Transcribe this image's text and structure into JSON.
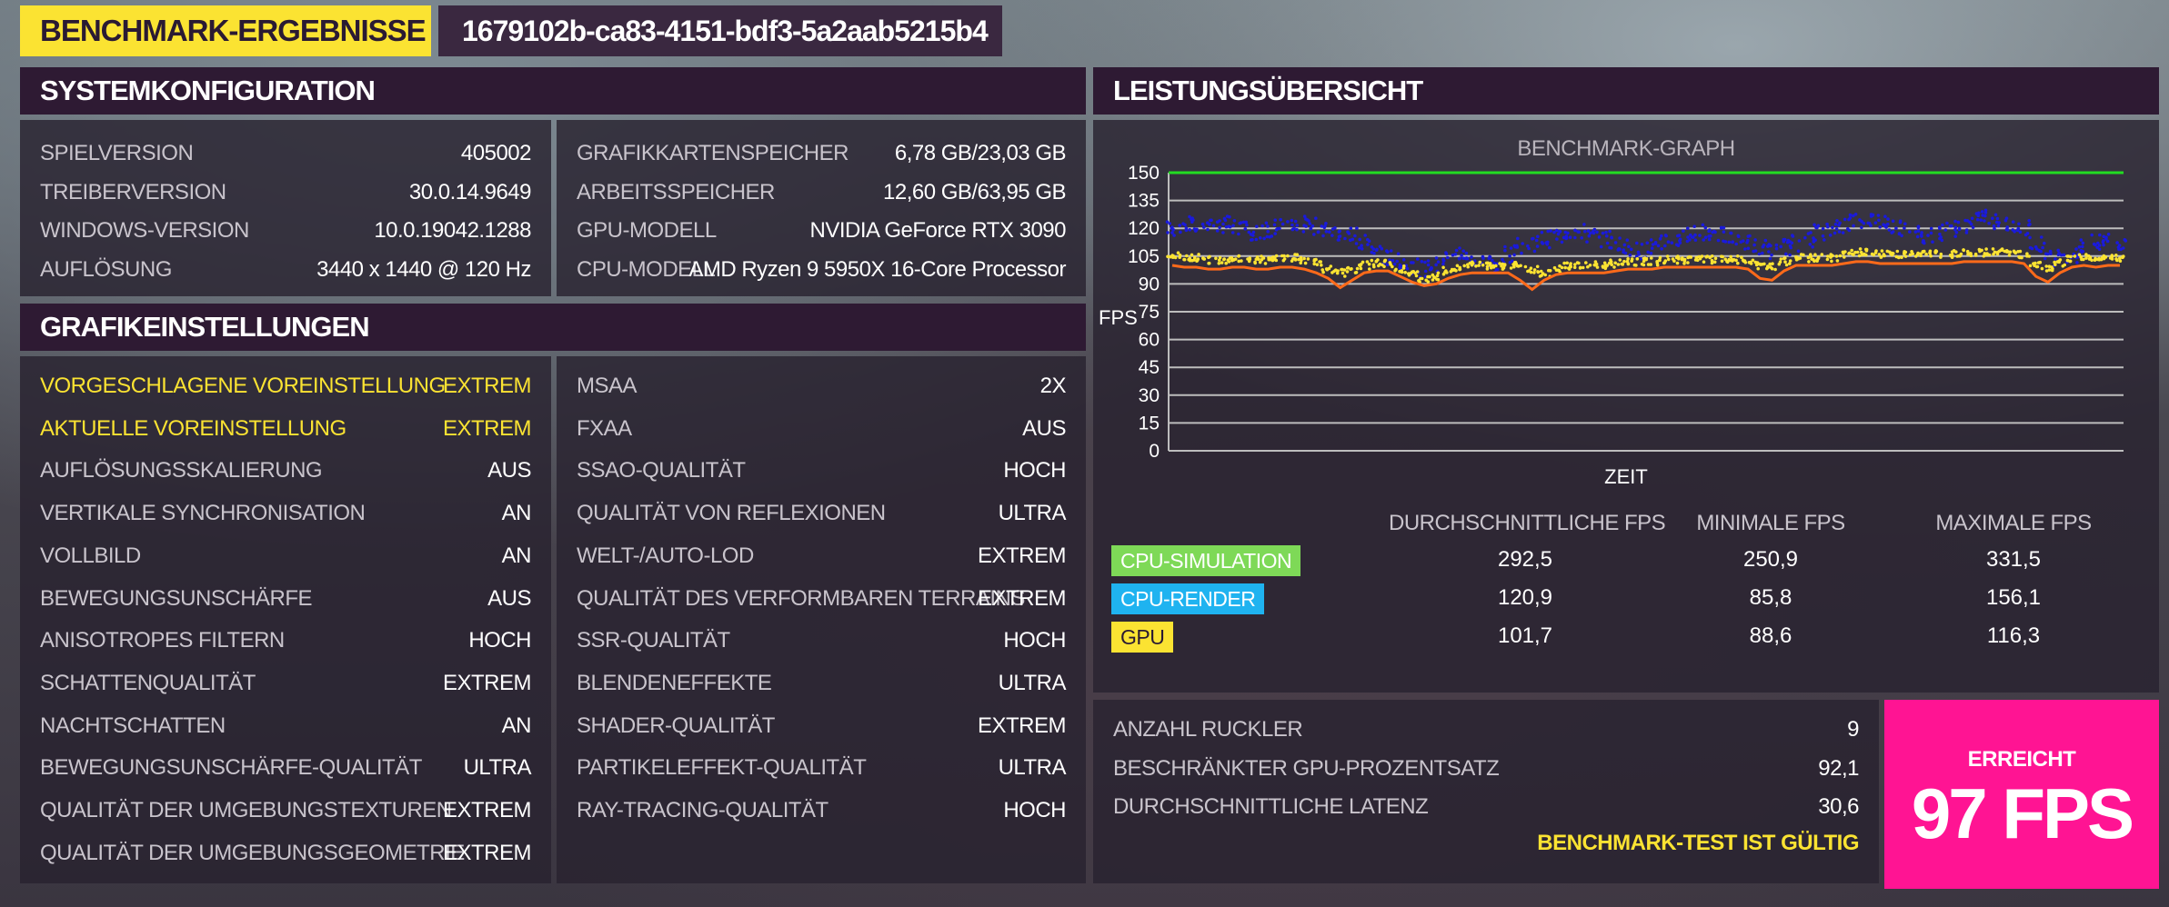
{
  "header": {
    "title": "BENCHMARK-ERGEBNISSE",
    "run_id": "1679102b-ca83-4151-bdf3-5a2aab5215b4"
  },
  "system": {
    "heading": "SYSTEMKONFIGURATION",
    "left": [
      {
        "label": "SPIELVERSION",
        "value": "405002"
      },
      {
        "label": "TREIBERVERSION",
        "value": "30.0.14.9649"
      },
      {
        "label": "WINDOWS-VERSION",
        "value": "10.0.19042.1288"
      },
      {
        "label": "AUFLÖSUNG",
        "value": "3440 x 1440 @ 120 Hz"
      }
    ],
    "right": [
      {
        "label": "GRAFIKKARTENSPEICHER",
        "value": "6,78 GB/23,03 GB"
      },
      {
        "label": "ARBEITSSPEICHER",
        "value": "12,60 GB/63,95 GB"
      },
      {
        "label": "GPU-MODELL",
        "value": "NVIDIA GeForce RTX 3090"
      },
      {
        "label": "CPU-MODELL",
        "value": "AMD Ryzen 9 5950X 16-Core Processor"
      }
    ]
  },
  "graphics": {
    "heading": "GRAFIKEINSTELLUNGEN",
    "left": [
      {
        "label": "VORGESCHLAGENE VOREINSTELLUNG",
        "value": "EXTREM"
      },
      {
        "label": "AKTUELLE VOREINSTELLUNG",
        "value": "EXTREM"
      },
      {
        "label": "AUFLÖSUNGSSKALIERUNG",
        "value": "AUS"
      },
      {
        "label": "VERTIKALE SYNCHRONISATION",
        "value": "AN"
      },
      {
        "label": "VOLLBILD",
        "value": "AN"
      },
      {
        "label": "BEWEGUNGSUNSCHÄRFE",
        "value": "AUS"
      },
      {
        "label": "ANISOTROPES FILTERN",
        "value": "HOCH"
      },
      {
        "label": "SCHATTENQUALITÄT",
        "value": "EXTREM"
      },
      {
        "label": "NACHTSCHATTEN",
        "value": "AN"
      },
      {
        "label": "BEWEGUNGSUNSCHÄRFE-QUALITÄT",
        "value": "ULTRA"
      },
      {
        "label": "QUALITÄT DER UMGEBUNGSTEXTUREN",
        "value": "EXTREM"
      },
      {
        "label": "QUALITÄT DER UMGEBUNGSGEOMETRIE",
        "value": "EXTREM"
      }
    ],
    "right": [
      {
        "label": "MSAA",
        "value": "2X"
      },
      {
        "label": "FXAA",
        "value": "AUS"
      },
      {
        "label": "SSAO-QUALITÄT",
        "value": "HOCH"
      },
      {
        "label": "QUALITÄT VON REFLEXIONEN",
        "value": "ULTRA"
      },
      {
        "label": "WELT-/AUTO-LOD",
        "value": "EXTREM"
      },
      {
        "label": "QUALITÄT DES VERFORMBAREN TERRAINS",
        "value": "EXTREM"
      },
      {
        "label": "SSR-QUALITÄT",
        "value": "HOCH"
      },
      {
        "label": "BLENDENEFFEKTE",
        "value": "ULTRA"
      },
      {
        "label": "SHADER-QUALITÄT",
        "value": "EXTREM"
      },
      {
        "label": "PARTIKELEFFEKT-QUALITÄT",
        "value": "ULTRA"
      },
      {
        "label": "RAY-TRACING-QUALITÄT",
        "value": "HOCH"
      }
    ]
  },
  "performance": {
    "heading": "LEISTUNGSÜBERSICHT",
    "stats_columns": [
      "DURCHSCHNITTLICHE FPS",
      "MINIMALE FPS",
      "MAXIMALE FPS"
    ],
    "stats": [
      {
        "name": "CPU-SIMULATION",
        "color": "#7ed957",
        "text_color": "#ffffff",
        "values": [
          "292,5",
          "250,9",
          "331,5"
        ]
      },
      {
        "name": "CPU-RENDER",
        "color": "#1fb3f0",
        "text_color": "#ffffff",
        "values": [
          "120,9",
          "85,8",
          "156,1"
        ]
      },
      {
        "name": "GPU",
        "color": "#fbe332",
        "text_color": "#2a1a33",
        "values": [
          "101,7",
          "88,6",
          "116,3"
        ]
      }
    ]
  },
  "chart_data": {
    "type": "scatter",
    "title": "BENCHMARK-GRAPH",
    "xlabel": "ZEIT",
    "ylabel": "FPS",
    "ylim": [
      0,
      150
    ],
    "yticks": [
      0,
      15,
      30,
      45,
      60,
      75,
      90,
      105,
      120,
      135,
      150
    ],
    "reference_line": {
      "value": 150,
      "color": "#22dd22"
    },
    "grid": true,
    "series": [
      {
        "color": "#1a1adc",
        "kind": "points",
        "values": [
          120,
          122,
          121,
          123,
          121,
          122,
          120,
          118,
          119,
          121,
          120,
          122,
          121,
          119,
          118,
          116,
          112,
          108,
          104,
          102,
          100,
          98,
          100,
          104,
          106,
          104,
          102,
          100,
          106,
          110,
          112,
          114,
          116,
          118,
          118,
          116,
          114,
          112,
          110,
          108,
          110,
          112,
          114,
          116,
          118,
          118,
          116,
          114,
          112,
          110,
          108,
          110,
          112,
          114,
          118,
          120,
          122,
          124,
          125,
          124,
          122,
          120,
          118,
          116,
          118,
          120,
          122,
          124,
          126,
          124,
          122,
          120,
          112,
          108,
          104,
          106,
          110,
          112,
          114,
          112
        ]
      },
      {
        "color": "#fbe332",
        "kind": "points",
        "values": [
          105,
          104,
          104,
          103,
          103,
          104,
          104,
          103,
          103,
          104,
          104,
          103,
          102,
          98,
          96,
          97,
          100,
          101,
          101,
          98,
          95,
          93,
          94,
          97,
          99,
          100,
          100,
          100,
          100,
          100,
          98,
          96,
          98,
          100,
          100,
          100,
          100,
          101,
          102,
          102,
          102,
          103,
          103,
          103,
          103,
          103,
          103,
          103,
          102,
          100,
          99,
          102,
          104,
          104,
          104,
          104,
          106,
          107,
          107,
          106,
          106,
          106,
          106,
          106,
          106,
          106,
          107,
          107,
          107,
          107,
          107,
          106,
          100,
          98,
          101,
          104,
          105,
          104,
          104,
          104
        ]
      },
      {
        "color": "#ff6a1a",
        "kind": "line",
        "values": [
          100,
          99,
          99,
          98,
          98,
          99,
          99,
          98,
          98,
          99,
          99,
          98,
          96,
          93,
          88,
          92,
          96,
          97,
          97,
          94,
          91,
          89,
          90,
          93,
          95,
          96,
          96,
          96,
          96,
          92,
          87,
          92,
          95,
          96,
          96,
          96,
          96,
          97,
          98,
          98,
          98,
          99,
          99,
          99,
          99,
          99,
          99,
          99,
          98,
          93,
          92,
          97,
          100,
          100,
          100,
          100,
          101,
          102,
          102,
          101,
          101,
          101,
          101,
          101,
          101,
          101,
          102,
          102,
          102,
          102,
          102,
          101,
          94,
          91,
          96,
          99,
          100,
          99,
          100,
          100
        ]
      }
    ]
  },
  "summary": {
    "rows": [
      {
        "label": "ANZAHL RUCKLER",
        "value": "9"
      },
      {
        "label": "BESCHRÄNKTER GPU-PROZENTSATZ",
        "value": "92,1"
      },
      {
        "label": "DURCHSCHNITTLICHE LATENZ",
        "value": "30,6"
      }
    ],
    "validity": "BENCHMARK-TEST IST GÜLTIG",
    "result_label": "ERREICHT",
    "result_value": "97 FPS"
  }
}
